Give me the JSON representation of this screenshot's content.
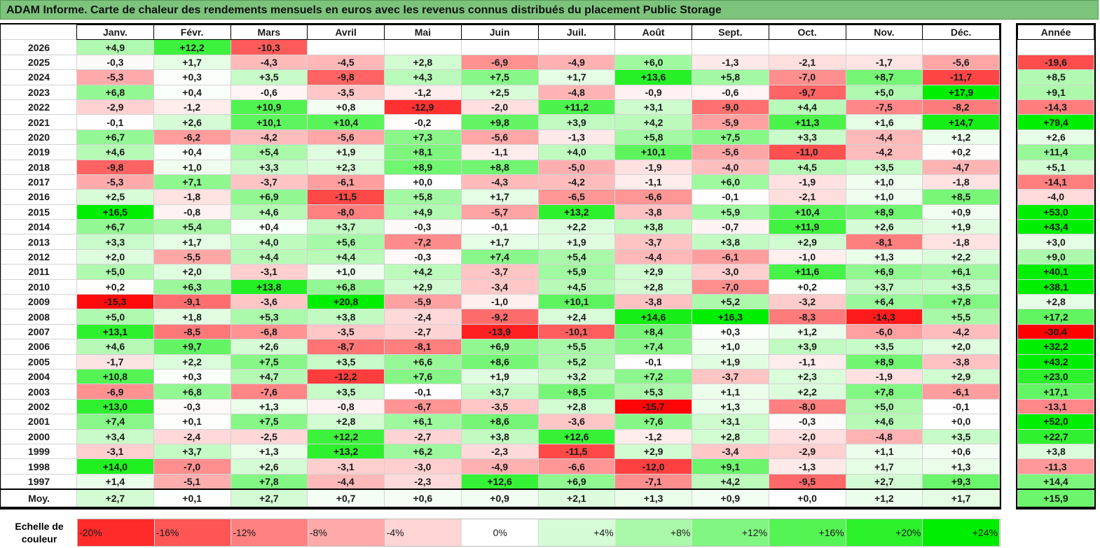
{
  "title": "ADAM Informe. Carte de chaleur des rendements mensuels en euros avec les revenus connus distribués du placement Public Storage",
  "chart_data": {
    "type": "heatmap",
    "title": "ADAM Informe. Carte de chaleur des rendements mensuels en euros avec les revenus connus distribués du placement Public Storage",
    "months": [
      "Janv.",
      "Févr.",
      "Mars",
      "Avril",
      "Mai",
      "Juin",
      "Juil.",
      "Août",
      "Sept.",
      "Oct.",
      "Nov.",
      "Déc."
    ],
    "annual_header": "Année",
    "rows": [
      {
        "year": "2026",
        "values": [
          "+4,9",
          "+12,2",
          "-10,3",
          "",
          "",
          "",
          "",
          "",
          "",
          "",
          "",
          ""
        ],
        "annual": ""
      },
      {
        "year": "2025",
        "values": [
          "-0,3",
          "+1,7",
          "-4,3",
          "-4,5",
          "+2,8",
          "-6,9",
          "-4,9",
          "+6,0",
          "-1,3",
          "-2,1",
          "-1,7",
          "-5,6"
        ],
        "annual": "-19,6"
      },
      {
        "year": "2024",
        "values": [
          "-5,3",
          "+0,3",
          "+3,5",
          "-9,8",
          "+4,3",
          "+7,5",
          "+1,7",
          "+13,6",
          "+5,8",
          "-7,0",
          "+8,7",
          "-11,7"
        ],
        "annual": "+8,5"
      },
      {
        "year": "2023",
        "values": [
          "+6,8",
          "+0,4",
          "-0,6",
          "-3,5",
          "-1,2",
          "+2,5",
          "-4,8",
          "-0,9",
          "-0,6",
          "-9,7",
          "+5,0",
          "+17,9"
        ],
        "annual": "+9,1"
      },
      {
        "year": "2022",
        "values": [
          "-2,9",
          "-1,2",
          "+10,9",
          "+0,8",
          "-12,9",
          "-2,0",
          "+11,2",
          "+3,1",
          "-9,0",
          "+4,4",
          "-7,5",
          "-8,2"
        ],
        "annual": "-14,3"
      },
      {
        "year": "2021",
        "values": [
          "-0,1",
          "+2,6",
          "+10,1",
          "+10,4",
          "-0,2",
          "+9,8",
          "+3,9",
          "+4,2",
          "-5,9",
          "+11,3",
          "+1,6",
          "+14,7"
        ],
        "annual": "+79,4"
      },
      {
        "year": "2020",
        "values": [
          "+6,7",
          "-6,2",
          "-4,2",
          "-5,6",
          "+7,3",
          "-5,6",
          "-1,3",
          "+5,8",
          "+7,5",
          "+3,3",
          "-4,4",
          "+1,2"
        ],
        "annual": "+2,6"
      },
      {
        "year": "2019",
        "values": [
          "+4,6",
          "+0,4",
          "+5,4",
          "+1,9",
          "+8,1",
          "-1,1",
          "+4,0",
          "+10,1",
          "-5,6",
          "-11,0",
          "-4,2",
          "+0,2"
        ],
        "annual": "+11,4"
      },
      {
        "year": "2018",
        "values": [
          "-9,8",
          "+1,0",
          "+3,3",
          "+2,3",
          "+8,9",
          "+8,8",
          "-5,0",
          "-1,9",
          "-4,0",
          "+4,5",
          "+3,5",
          "-4,7"
        ],
        "annual": "+5,1"
      },
      {
        "year": "2017",
        "values": [
          "-5,3",
          "+7,1",
          "-3,7",
          "-6,1",
          "+0,0",
          "-4,3",
          "-4,2",
          "-1,1",
          "+6,0",
          "-1,9",
          "+1,0",
          "-1,8"
        ],
        "annual": "-14,1"
      },
      {
        "year": "2016",
        "values": [
          "+2,5",
          "-1,8",
          "+6,9",
          "-11,5",
          "+5,8",
          "+1,7",
          "-6,5",
          "-6,6",
          "-0,1",
          "-2,1",
          "+1,0",
          "+8,5"
        ],
        "annual": "-4,0"
      },
      {
        "year": "2015",
        "values": [
          "+16,5",
          "-0,8",
          "+4,6",
          "-8,0",
          "+4,9",
          "-5,7",
          "+13,2",
          "-3,8",
          "+5,9",
          "+10,4",
          "+8,9",
          "+0,9"
        ],
        "annual": "+53,0"
      },
      {
        "year": "2014",
        "values": [
          "+6,7",
          "+5,4",
          "+0,4",
          "+3,7",
          "-0,3",
          "-0,1",
          "+2,2",
          "+3,8",
          "-0,7",
          "+11,9",
          "+2,6",
          "+1,9"
        ],
        "annual": "+43,4"
      },
      {
        "year": "2013",
        "values": [
          "+3,3",
          "+1,7",
          "+4,0",
          "+5,6",
          "-7,2",
          "+1,7",
          "+1,9",
          "-3,7",
          "+3,8",
          "+2,9",
          "-8,1",
          "-1,8"
        ],
        "annual": "+3,0"
      },
      {
        "year": "2012",
        "values": [
          "+2,0",
          "-5,5",
          "+4,4",
          "+4,4",
          "-0,3",
          "+7,4",
          "+5,4",
          "-4,4",
          "-6,1",
          "-1,0",
          "+1,3",
          "+2,2"
        ],
        "annual": "+9,0"
      },
      {
        "year": "2011",
        "values": [
          "+5,0",
          "+2,0",
          "-3,1",
          "+1,0",
          "+4,2",
          "-3,7",
          "+5,9",
          "+2,9",
          "-3,0",
          "+11,6",
          "+6,9",
          "+6,1"
        ],
        "annual": "+40,1"
      },
      {
        "year": "2010",
        "values": [
          "+0,2",
          "+6,3",
          "+13,8",
          "+6,8",
          "+2,9",
          "-3,4",
          "+4,5",
          "+2,8",
          "-7,0",
          "+0,2",
          "+3,7",
          "+3,5"
        ],
        "annual": "+38,1"
      },
      {
        "year": "2009",
        "values": [
          "-15,3",
          "-9,1",
          "-3,6",
          "+20,8",
          "-5,9",
          "-1,0",
          "+10,1",
          "-3,8",
          "+5,2",
          "-3,2",
          "+6,4",
          "+7,8"
        ],
        "annual": "+2,8"
      },
      {
        "year": "2008",
        "values": [
          "+5,0",
          "+1,8",
          "+5,3",
          "+3,8",
          "-2,4",
          "-9,2",
          "+2,4",
          "+14,6",
          "+16,3",
          "-8,3",
          "-14,3",
          "+5,5"
        ],
        "annual": "+17,2"
      },
      {
        "year": "2007",
        "values": [
          "+13,1",
          "-8,5",
          "-6,8",
          "-3,5",
          "-2,7",
          "-13,9",
          "-10,1",
          "+8,4",
          "+0,3",
          "+1,2",
          "-6,0",
          "-4,2"
        ],
        "annual": "-30,4"
      },
      {
        "year": "2006",
        "values": [
          "+4,6",
          "+9,7",
          "+2,6",
          "-8,7",
          "-8,1",
          "+6,9",
          "+5,5",
          "+7,4",
          "+1,0",
          "+3,9",
          "+3,5",
          "+2,0"
        ],
        "annual": "+32,2"
      },
      {
        "year": "2005",
        "values": [
          "-1,7",
          "+2,2",
          "+7,5",
          "+3,5",
          "+6,6",
          "+8,6",
          "+5,2",
          "-0,1",
          "+1,9",
          "-1,1",
          "+8,9",
          "-3,8"
        ],
        "annual": "+43,2"
      },
      {
        "year": "2004",
        "values": [
          "+10,8",
          "+0,3",
          "+4,7",
          "-12,2",
          "+7,6",
          "+1,9",
          "+3,2",
          "+7,2",
          "-3,7",
          "+2,3",
          "-1,9",
          "+2,9"
        ],
        "annual": "+23,0"
      },
      {
        "year": "2003",
        "values": [
          "-6,9",
          "+6,8",
          "-7,6",
          "+3,5",
          "-0,1",
          "+3,7",
          "+8,5",
          "+5,3",
          "+1,1",
          "+2,2",
          "+7,8",
          "-6,1"
        ],
        "annual": "+17,1"
      },
      {
        "year": "2002",
        "values": [
          "+13,0",
          "-0,3",
          "+1,3",
          "-0,8",
          "-6,7",
          "-3,5",
          "+2,8",
          "-15,7",
          "+1,3",
          "-8,0",
          "+5,0",
          "-0,1"
        ],
        "annual": "-13,1"
      },
      {
        "year": "2001",
        "values": [
          "+7,4",
          "+0,1",
          "+7,5",
          "+2,8",
          "+6,1",
          "+8,6",
          "-3,6",
          "+7,6",
          "+3,1",
          "-0,3",
          "+4,6",
          "+0,0"
        ],
        "annual": "+52,0"
      },
      {
        "year": "2000",
        "values": [
          "+3,4",
          "-2,4",
          "-2,5",
          "+12,2",
          "-2,7",
          "+3,8",
          "+12,6",
          "-1,2",
          "+2,8",
          "-2,0",
          "-4,8",
          "+3,5"
        ],
        "annual": "+22,7"
      },
      {
        "year": "1999",
        "values": [
          "-3,1",
          "+3,7",
          "+1,3",
          "+13,2",
          "+6,2",
          "-2,3",
          "-11,5",
          "+2,9",
          "-3,4",
          "-2,9",
          "+1,1",
          "+0,6"
        ],
        "annual": "+3,8"
      },
      {
        "year": "1998",
        "values": [
          "+14,0",
          "-7,0",
          "+2,6",
          "-3,1",
          "-3,0",
          "-4,9",
          "-6,6",
          "-12,0",
          "+9,1",
          "-1,3",
          "+1,7",
          "+1,3"
        ],
        "annual": "-11,3"
      },
      {
        "year": "1997",
        "values": [
          "+1,4",
          "-5,1",
          "+7,8",
          "-4,4",
          "-2,3",
          "+12,6",
          "+6,9",
          "-7,1",
          "+4,2",
          "-9,5",
          "+2,7",
          "+9,3"
        ],
        "annual": "+14,4"
      }
    ],
    "average": {
      "label": "Moy.",
      "values": [
        "+2,7",
        "+0,1",
        "+2,7",
        "+0,7",
        "+0,6",
        "+0,9",
        "+2,1",
        "+1,3",
        "+0,9",
        "+0,0",
        "+1,2",
        "+1,7"
      ],
      "annual": "+15,9"
    },
    "scale": {
      "label": "Echelle de couleur",
      "stops": [
        {
          "label": "-20%",
          "value": -20,
          "align": "l"
        },
        {
          "label": "-16%",
          "value": -16,
          "align": "l"
        },
        {
          "label": "-12%",
          "value": -12,
          "align": "l"
        },
        {
          "label": "-8%",
          "value": -8,
          "align": "l"
        },
        {
          "label": "-4%",
          "value": -4,
          "align": "l"
        },
        {
          "label": "0%",
          "value": 0,
          "align": "c"
        },
        {
          "label": "+4%",
          "value": 4,
          "align": "r"
        },
        {
          "label": "+8%",
          "value": 8,
          "align": "r"
        },
        {
          "label": "+12%",
          "value": 12,
          "align": "r"
        },
        {
          "label": "+16%",
          "value": 16,
          "align": "r"
        },
        {
          "label": "+20%",
          "value": 20,
          "align": "r"
        },
        {
          "label": "+24%",
          "value": 24,
          "align": "r"
        }
      ]
    },
    "colors": {
      "negative_max": "#ff0000",
      "neutral": "#ffffff",
      "positive_max": "#00ee00",
      "title_bg": "#7cc47c"
    }
  }
}
